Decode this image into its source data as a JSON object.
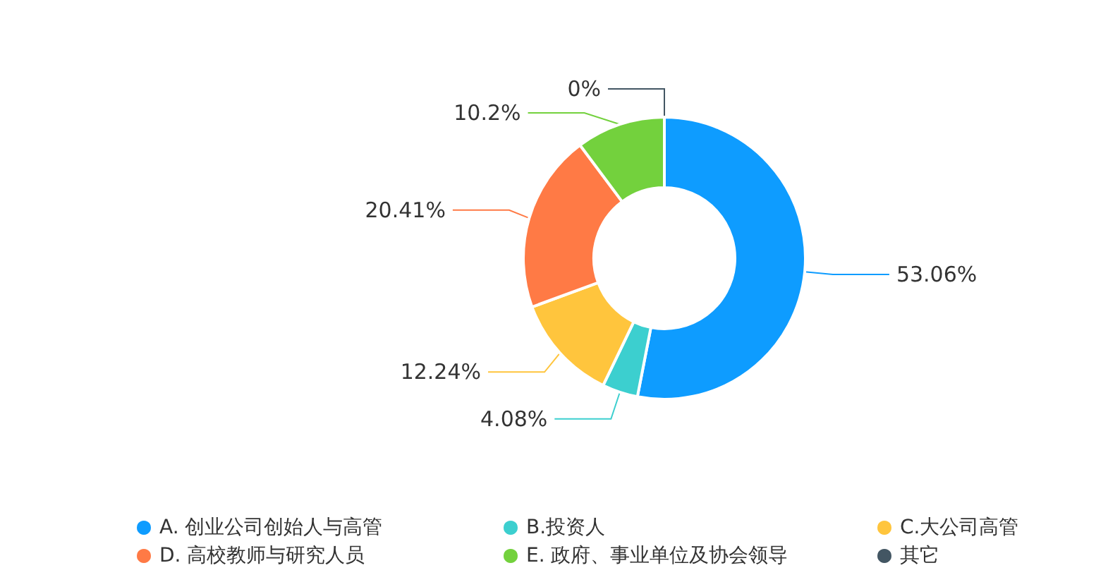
{
  "chart_data": {
    "type": "donut",
    "categories": [
      "A. 创业公司创始人与高管",
      "B.投资人",
      "C.大公司高管",
      "D. 高校教师与研究人员",
      "E. 政府、事业单位及协会领导",
      "其它"
    ],
    "values": [
      53.06,
      4.08,
      12.24,
      20.41,
      10.2,
      0
    ],
    "colors": [
      "#0e9cff",
      "#3ccfcf",
      "#ffc53d",
      "#ff7a45",
      "#73d13d",
      "#435663"
    ],
    "value_labels": [
      "53.06%",
      "4.08%",
      "12.24%",
      "20.41%",
      "10.2%",
      "0%"
    ],
    "legend": "bottom"
  }
}
